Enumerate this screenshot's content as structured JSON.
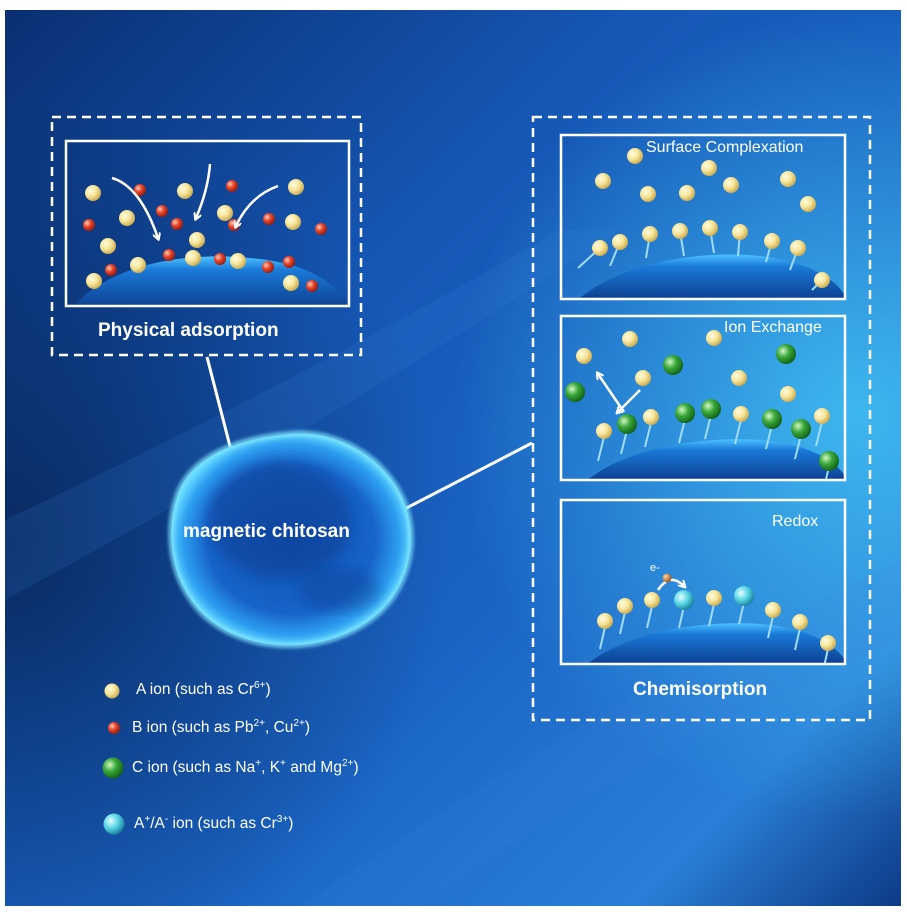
{
  "colors": {
    "background": "#1358b8",
    "dashed_border": "#ffffff",
    "a_ion": "#f3e08c",
    "b_ion": "#e0351f",
    "c_ion": "#2e9b2e",
    "apm_ion": "#3fd0e0",
    "chitosan": "#1a8fe6",
    "electron": "#d07a2a"
  },
  "labels": {
    "physical_adsorption": "Physical adsorption",
    "magnetic_chitosan": "magnetic chitosan",
    "surface_complexation": "Surface Complexation",
    "ion_exchange": "Ion Exchange",
    "redox": "Redox",
    "chemisorption": "Chemisorption",
    "electron": "e-"
  },
  "legend": {
    "a_ion": {
      "pre": "A ion (such as Cr",
      "sup1": "6+",
      "post": ")"
    },
    "b_ion": {
      "pre": "B ion (such as Pb",
      "sup1": "2+",
      "mid": ", Cu",
      "sup2": "2+",
      "post": ")"
    },
    "c_ion": {
      "pre": "C ion (such as Na",
      "sup1": "+",
      "mid": ", K",
      "sup2": "+",
      "mid2": " and Mg",
      "sup3": "2+",
      "post": ")"
    },
    "apm_ion": {
      "pre": "A",
      "sup1": "+",
      "mid": "/A",
      "sup2": "-",
      "post": " ion (such as Cr",
      "sup3": "3+",
      "post2": ")"
    }
  }
}
